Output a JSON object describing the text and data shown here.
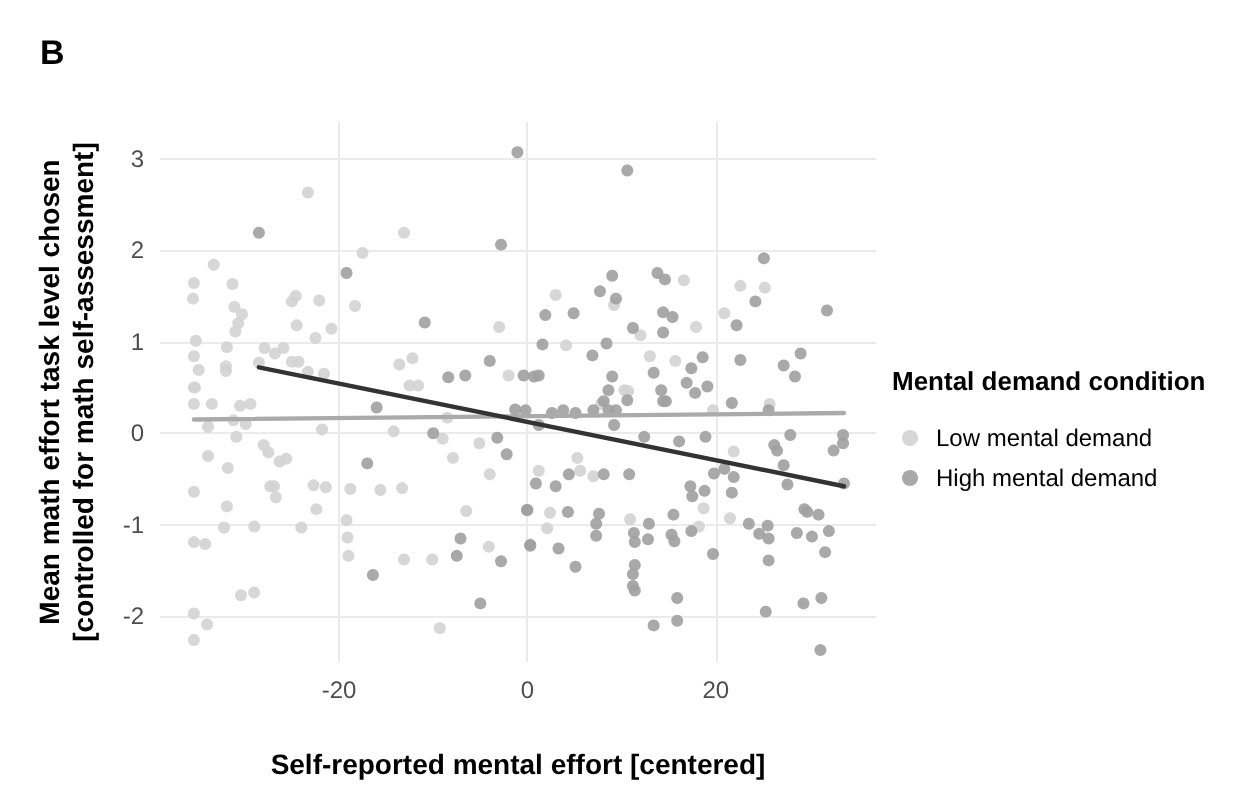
{
  "chart_data": {
    "type": "scatter",
    "xlabel": "Self-reported mental effort [centered]",
    "ylabel": "Mean math effort task level chosen\n[controlled for math self-assessment]",
    "legend_title": "Mental demand condition",
    "annotations": [
      "B"
    ],
    "xlim": [
      -39,
      37
    ],
    "ylim": [
      -2.5,
      3.4
    ],
    "xticks": [
      -20,
      0,
      20
    ],
    "yticks": [
      -2,
      -1,
      0,
      1,
      2,
      3
    ],
    "grid": true,
    "legend": "right",
    "marker": "circle",
    "series": [
      {
        "name": "Low mental demand",
        "color": "#d3d3d3",
        "x": [
          -35.4,
          -35.5,
          -35.2,
          -35.4,
          -34.9,
          -35.3,
          -33.3,
          -31.3,
          -31.1,
          -30.7,
          -31,
          -30.3,
          -31.9,
          -32,
          -32,
          -27.9,
          -26.8,
          -25.9,
          -25,
          -24.3,
          -28.5,
          -24.6,
          -25,
          -24.5,
          -23.3,
          -22.5,
          -22.1,
          -20.8,
          -21.6,
          -23.3,
          -18.3,
          -17.5,
          -13.1,
          -13.6,
          -12.2,
          -12.5,
          -11.6,
          -3,
          -2,
          -35.4,
          -35.4,
          -33.5,
          -33.9,
          -31.2,
          -30.9,
          -29.9,
          -30.5,
          -29.4,
          -33.9,
          -31.8,
          -35.4,
          -31.9,
          -32.2,
          -35.4,
          -34.2,
          -29,
          -30.4,
          -29,
          -35.4,
          -34,
          -35.4,
          -28,
          -27.5,
          -26.3,
          -25.6,
          -27.3,
          -26.9,
          -26.7,
          -24,
          -22.7,
          -21.4,
          -22.4,
          -21.8,
          -18.8,
          -19.2,
          -19.1,
          -19,
          -15.6,
          -13.3,
          -13.1,
          -14.2,
          -10.1,
          -9.3,
          -6.5,
          -9,
          -7.9,
          -5.1,
          -4,
          -4.1,
          -8.5,
          7.8,
          10.3,
          5.3,
          5.6,
          1.2,
          7,
          2.4,
          2.1,
          10.9,
          18.7,
          18.2,
          21.5,
          21.9,
          25.7,
          19.7,
          3,
          4.1,
          9.2,
          12,
          16.6,
          13,
          15.7,
          17.9,
          20.9,
          22.6,
          25.2,
          10.7
        ],
        "values": [
          1.64,
          1.47,
          1.01,
          0.84,
          0.69,
          0.5,
          1.84,
          1.63,
          1.38,
          1.2,
          1.11,
          1.3,
          0.94,
          0.73,
          0.68,
          0.93,
          0.87,
          0.93,
          0.78,
          0.78,
          0.77,
          1.5,
          1.44,
          1.18,
          2.63,
          1.04,
          1.45,
          1.14,
          0.65,
          0.67,
          1.39,
          1.97,
          2.19,
          0.75,
          0.82,
          0.52,
          0.52,
          1.16,
          0.63,
          0.5,
          0.32,
          0.32,
          0.07,
          0.14,
          -0.04,
          0.1,
          0.3,
          0.32,
          -0.25,
          -0.38,
          -0.64,
          -0.8,
          -1.03,
          -1.19,
          -1.21,
          -1.02,
          -1.77,
          -1.74,
          -1.97,
          -2.09,
          -2.26,
          -0.13,
          -0.21,
          -0.31,
          -0.28,
          -0.58,
          -0.58,
          -0.7,
          -1.03,
          -0.57,
          -0.59,
          -0.83,
          0.04,
          -0.61,
          -0.95,
          -1.14,
          -1.34,
          -0.62,
          -0.6,
          -1.38,
          0.02,
          -1.38,
          -2.13,
          -0.85,
          -0.06,
          -0.27,
          -0.11,
          -0.45,
          -1.24,
          0.17,
          0.32,
          0.47,
          -0.27,
          -0.41,
          -0.41,
          -0.47,
          -0.87,
          -1.04,
          -0.94,
          -0.82,
          -1.02,
          -0.93,
          -0.2,
          0.32,
          0.25,
          1.51,
          0.96,
          1.4,
          1.07,
          1.67,
          0.84,
          0.79,
          1.16,
          1.31,
          1.61,
          1.59,
          0.46
        ]
      },
      {
        "name": "High mental demand",
        "color": "#a0a0a0",
        "x": [
          -28.5,
          -19.2,
          -10.9,
          -8.4,
          -6.6,
          -4,
          -2.8,
          -1.06,
          -0.4,
          0.7,
          10.6,
          25.1,
          9,
          13.8,
          14.6,
          7.7,
          9.4,
          24.2,
          31.8,
          1.9,
          4.9,
          14.4,
          15.4,
          11.2,
          14.4,
          22.2,
          1.6,
          8.4,
          6.9,
          18.6,
          22.6,
          27.2,
          29,
          17.4,
          13.4,
          9,
          28.4,
          1.2,
          16.9,
          19.1,
          8.6,
          14.2,
          17.8,
          -0.2,
          1.2,
          2.6,
          3.8,
          5.1,
          7,
          8.6,
          9.4,
          8.1,
          10.6,
          14.4,
          14.7,
          9.2,
          21.7,
          25.6,
          12.4,
          16.1,
          18.9,
          26.5,
          26.2,
          27.9,
          33.5,
          33.5,
          32.5,
          27.2,
          27.6,
          33.6,
          0.9,
          3,
          4.4,
          8.1,
          10.8,
          19.8,
          20.9,
          21.9,
          18.8,
          17.3,
          17.5,
          21.7,
          -0.05,
          4.3,
          7.6,
          7.3,
          12.9,
          15.5,
          23.5,
          25.5,
          29.4,
          29.7,
          30.9,
          0.3,
          3.3,
          7.3,
          11.3,
          11.4,
          12.8,
          15.3,
          15.6,
          17.4,
          24.6,
          25.6,
          28.6,
          30.2,
          32,
          19.7,
          25.6,
          31.6,
          5.1,
          11.4,
          11.2,
          11.2,
          11.4,
          15.9,
          13.4,
          15.9,
          25.3,
          29.3,
          31.2,
          31.1,
          -16,
          -17,
          -16.4,
          -10,
          -3.2,
          -2.2,
          0,
          0.3,
          -2.8,
          -7.1,
          -7.5,
          -5,
          -1.3
        ],
        "values": [
          2.19,
          1.75,
          1.21,
          0.61,
          0.63,
          0.79,
          2.06,
          3.07,
          0.63,
          0.62,
          2.87,
          1.91,
          1.72,
          1.75,
          1.68,
          1.55,
          1.47,
          1.44,
          1.34,
          1.29,
          1.31,
          1.32,
          1.27,
          1.15,
          1.1,
          1.18,
          0.97,
          0.98,
          0.85,
          0.83,
          0.8,
          0.74,
          0.87,
          0.71,
          0.66,
          0.62,
          0.62,
          0.63,
          0.55,
          0.51,
          0.47,
          0.47,
          0.44,
          0.25,
          0.09,
          0.22,
          0.25,
          0.22,
          0.25,
          0.25,
          0.25,
          0.35,
          0.36,
          0.35,
          0.35,
          0.09,
          0.33,
          0.25,
          -0.04,
          -0.09,
          -0.04,
          -0.19,
          -0.13,
          -0.02,
          -0.02,
          -0.11,
          -0.19,
          -0.35,
          -0.56,
          -0.55,
          -0.55,
          -0.58,
          -0.45,
          -0.45,
          -0.45,
          -0.44,
          -0.39,
          -0.48,
          -0.63,
          -0.58,
          -0.69,
          -0.65,
          -0.84,
          -0.86,
          -0.88,
          -0.99,
          -0.99,
          -0.89,
          -0.99,
          -1.01,
          -0.83,
          -0.86,
          -0.89,
          -1.22,
          -1.26,
          -1.12,
          -1.09,
          -1.19,
          -1.16,
          -1.11,
          -1.18,
          -1.07,
          -1.1,
          -1.15,
          -1.09,
          -1.13,
          -1.07,
          -1.32,
          -1.39,
          -1.3,
          -1.46,
          -1.44,
          -1.54,
          -1.67,
          -1.72,
          -1.8,
          -2.1,
          -2.05,
          -1.95,
          -1.86,
          -1.8,
          -2.37,
          0.28,
          -0.33,
          -1.55,
          0,
          -0.05,
          -0.23,
          -0.84,
          -1.23,
          -1.4,
          -1.15,
          -1.34,
          -1.86,
          0.26
        ]
      },
      {
        "type": "line",
        "marker": "none",
        "color": "#aaaaaa",
        "x": [
          -35.4,
          33.6
        ],
        "values": [
          0.15,
          0.22
        ]
      },
      {
        "type": "line",
        "marker": "none",
        "color": "#333333",
        "x": [
          -28.5,
          33.6
        ],
        "values": [
          0.72,
          -0.58
        ]
      }
    ]
  }
}
